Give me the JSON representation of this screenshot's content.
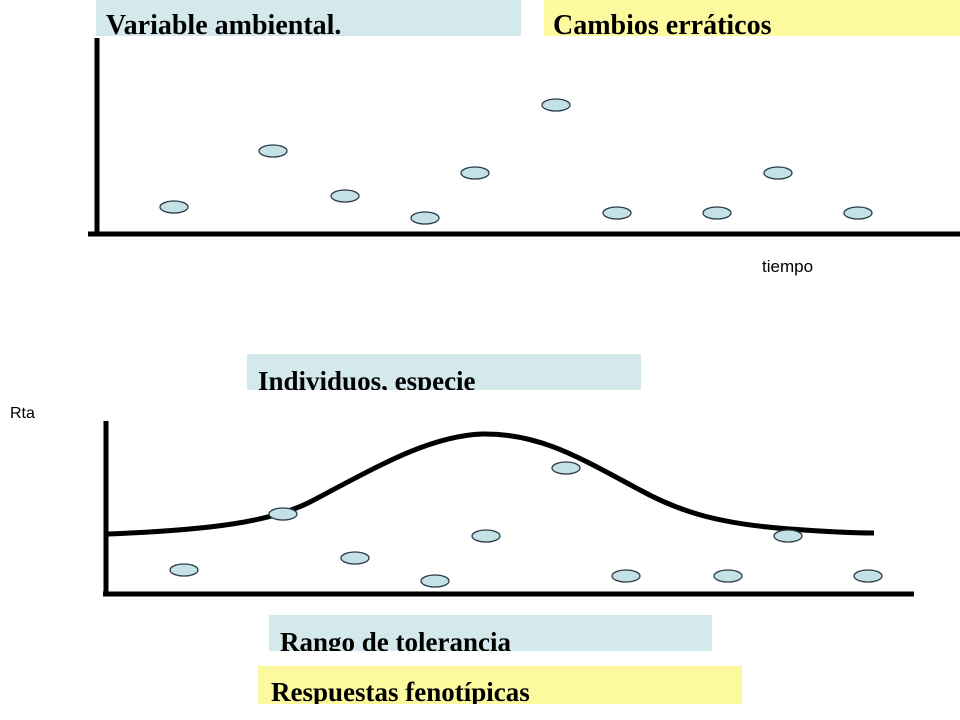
{
  "labels": {
    "variable": "Variable ambiental.",
    "cambios": "Cambios erráticos",
    "tiempo": "tiempo",
    "individuos": "Individuos, especie",
    "rta": "Rta",
    "rango": "Rango de tolerancia",
    "respuestas": "Respuestas fenotípicas"
  },
  "colors": {
    "label_blue": "#d3e9ec",
    "label_yellow": "#fdf99e",
    "point_fill": "#c4e1e6",
    "line": "#000000"
  },
  "figure": {
    "top_plot": {
      "points": 10
    },
    "bottom_plot": {
      "points": 10,
      "curve": "bell"
    }
  }
}
